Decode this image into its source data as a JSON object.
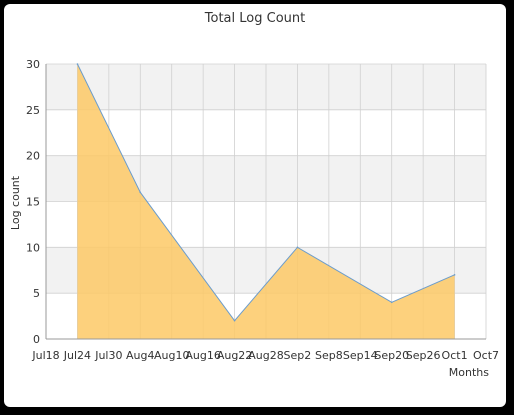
{
  "chart_data": {
    "type": "area",
    "title": "Total Log Count",
    "xlabel": "Months",
    "ylabel": "Log count",
    "ylim": [
      0,
      30
    ],
    "yticks": [
      0,
      5,
      10,
      15,
      20,
      25,
      30
    ],
    "x_tick_labels": [
      "Jul18",
      "Jul24",
      "Jul30",
      "Aug4",
      "Aug10",
      "Aug16",
      "Aug22",
      "Aug28",
      "Sep2",
      "Sep8",
      "Sep14",
      "Sep20",
      "Sep26",
      "Oct1",
      "Oct7"
    ],
    "series": [
      {
        "points": [
          {
            "x": "Jul24",
            "y": 30
          },
          {
            "x": "Aug4",
            "y": 16
          },
          {
            "x": "Aug22",
            "y": 2
          },
          {
            "x": "Sep2",
            "y": 10
          },
          {
            "x": "Sep20",
            "y": 4
          },
          {
            "x": "Oct1",
            "y": 7
          }
        ]
      }
    ],
    "grid": true,
    "colors": {
      "fill": "#fdc966",
      "line": "#6b9ccc",
      "band": "#f2f2f2",
      "grid": "#d0d0d0",
      "axis": "#999999"
    }
  }
}
